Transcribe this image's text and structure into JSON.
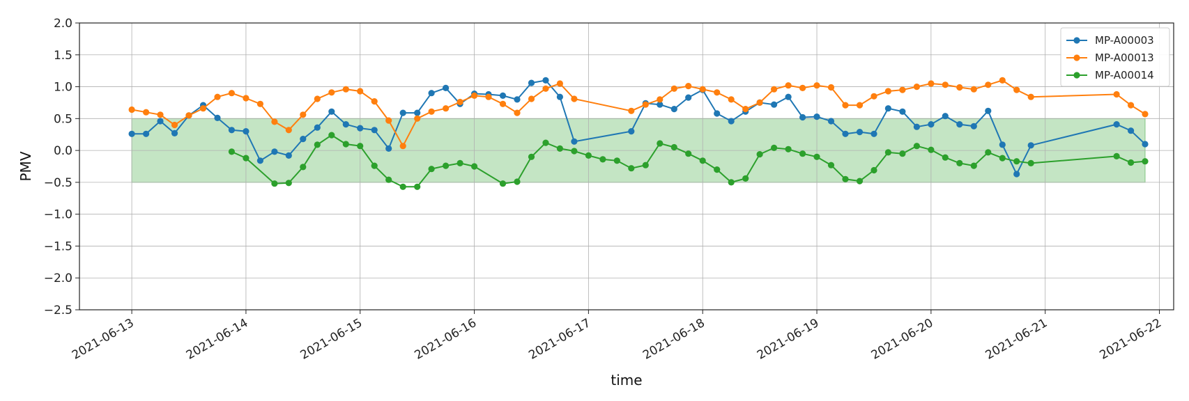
{
  "chart_data": {
    "type": "line",
    "xlabel": "time",
    "ylabel": "PMV",
    "ylim": [
      -2.5,
      2.0
    ],
    "xlim": [
      "2021-06-12T13:00",
      "2021-06-22T03:00"
    ],
    "y_ticks": [
      "2.0",
      "1.5",
      "1.0",
      "0.5",
      "0.0",
      "−0.5",
      "−1.0",
      "−1.5",
      "−2.0",
      "−2.5"
    ],
    "x_ticks": [
      "2021-06-13",
      "2021-06-14",
      "2021-06-15",
      "2021-06-16",
      "2021-06-17",
      "2021-06-18",
      "2021-06-19",
      "2021-06-20",
      "2021-06-21",
      "2021-06-22"
    ],
    "grid": true,
    "legend_position": "top-right",
    "comfort_band": {
      "y_low": -0.5,
      "y_high": 0.5,
      "x_start": "2021-06-13T00:00",
      "x_end": "2021-06-21T21:00",
      "color": "#2ca02c"
    },
    "series": [
      {
        "name": "MP-A00003",
        "color": "#1f77b4",
        "x": [
          "2021-06-13T00:00",
          "2021-06-13T03:00",
          "2021-06-13T06:00",
          "2021-06-13T09:00",
          "2021-06-13T12:00",
          "2021-06-13T15:00",
          "2021-06-13T18:00",
          "2021-06-13T21:00",
          "2021-06-14T00:00",
          "2021-06-14T03:00",
          "2021-06-14T06:00",
          "2021-06-14T09:00",
          "2021-06-14T12:00",
          "2021-06-14T15:00",
          "2021-06-14T18:00",
          "2021-06-14T21:00",
          "2021-06-15T00:00",
          "2021-06-15T03:00",
          "2021-06-15T06:00",
          "2021-06-15T09:00",
          "2021-06-15T12:00",
          "2021-06-15T15:00",
          "2021-06-15T18:00",
          "2021-06-15T21:00",
          "2021-06-16T00:00",
          "2021-06-16T03:00",
          "2021-06-16T06:00",
          "2021-06-16T09:00",
          "2021-06-16T12:00",
          "2021-06-16T15:00",
          "2021-06-16T18:00",
          "2021-06-16T21:00",
          "2021-06-17T09:00",
          "2021-06-17T12:00",
          "2021-06-17T15:00",
          "2021-06-17T18:00",
          "2021-06-17T21:00",
          "2021-06-18T00:00",
          "2021-06-18T03:00",
          "2021-06-18T06:00",
          "2021-06-18T09:00",
          "2021-06-18T12:00",
          "2021-06-18T15:00",
          "2021-06-18T18:00",
          "2021-06-18T21:00",
          "2021-06-19T00:00",
          "2021-06-19T03:00",
          "2021-06-19T06:00",
          "2021-06-19T09:00",
          "2021-06-19T12:00",
          "2021-06-19T15:00",
          "2021-06-19T18:00",
          "2021-06-19T21:00",
          "2021-06-20T00:00",
          "2021-06-20T03:00",
          "2021-06-20T06:00",
          "2021-06-20T09:00",
          "2021-06-20T12:00",
          "2021-06-20T15:00",
          "2021-06-20T18:00",
          "2021-06-20T21:00",
          "2021-06-21T15:00",
          "2021-06-21T18:00",
          "2021-06-21T21:00"
        ],
        "y": [
          0.26,
          0.26,
          0.46,
          0.27,
          0.55,
          0.71,
          0.51,
          0.32,
          0.3,
          -0.16,
          -0.02,
          -0.08,
          0.18,
          0.36,
          0.61,
          0.41,
          0.35,
          0.32,
          0.03,
          0.59,
          0.59,
          0.9,
          0.98,
          0.73,
          0.89,
          0.88,
          0.86,
          0.8,
          1.06,
          1.1,
          0.84,
          0.14,
          0.3,
          0.74,
          0.72,
          0.65,
          0.83,
          0.95,
          0.58,
          0.46,
          0.61,
          0.75,
          0.72,
          0.84,
          0.52,
          0.53,
          0.46,
          0.26,
          0.29,
          0.26,
          0.66,
          0.61,
          0.37,
          0.41,
          0.54,
          0.41,
          0.38,
          0.62,
          0.09,
          -0.37,
          0.08,
          0.41,
          0.31,
          0.1
        ]
      },
      {
        "name": "MP-A00013",
        "color": "#ff7f0e",
        "x": [
          "2021-06-13T00:00",
          "2021-06-13T03:00",
          "2021-06-13T06:00",
          "2021-06-13T09:00",
          "2021-06-13T12:00",
          "2021-06-13T15:00",
          "2021-06-13T18:00",
          "2021-06-13T21:00",
          "2021-06-14T00:00",
          "2021-06-14T03:00",
          "2021-06-14T06:00",
          "2021-06-14T09:00",
          "2021-06-14T12:00",
          "2021-06-14T15:00",
          "2021-06-14T18:00",
          "2021-06-14T21:00",
          "2021-06-15T00:00",
          "2021-06-15T03:00",
          "2021-06-15T06:00",
          "2021-06-15T09:00",
          "2021-06-15T12:00",
          "2021-06-15T15:00",
          "2021-06-15T18:00",
          "2021-06-15T21:00",
          "2021-06-16T00:00",
          "2021-06-16T03:00",
          "2021-06-16T06:00",
          "2021-06-16T09:00",
          "2021-06-16T12:00",
          "2021-06-16T15:00",
          "2021-06-16T18:00",
          "2021-06-16T21:00",
          "2021-06-17T09:00",
          "2021-06-17T12:00",
          "2021-06-17T15:00",
          "2021-06-17T18:00",
          "2021-06-17T21:00",
          "2021-06-18T00:00",
          "2021-06-18T03:00",
          "2021-06-18T06:00",
          "2021-06-18T09:00",
          "2021-06-18T12:00",
          "2021-06-18T15:00",
          "2021-06-18T18:00",
          "2021-06-18T21:00",
          "2021-06-19T00:00",
          "2021-06-19T03:00",
          "2021-06-19T06:00",
          "2021-06-19T09:00",
          "2021-06-19T12:00",
          "2021-06-19T15:00",
          "2021-06-19T18:00",
          "2021-06-19T21:00",
          "2021-06-20T00:00",
          "2021-06-20T03:00",
          "2021-06-20T06:00",
          "2021-06-20T09:00",
          "2021-06-20T12:00",
          "2021-06-20T15:00",
          "2021-06-20T18:00",
          "2021-06-20T21:00",
          "2021-06-21T15:00",
          "2021-06-21T18:00",
          "2021-06-21T21:00"
        ],
        "y": [
          0.64,
          0.6,
          0.56,
          0.4,
          0.55,
          0.66,
          0.84,
          0.9,
          0.82,
          0.73,
          0.45,
          0.32,
          0.56,
          0.81,
          0.91,
          0.96,
          0.93,
          0.77,
          0.47,
          0.07,
          0.5,
          0.61,
          0.66,
          0.76,
          0.86,
          0.84,
          0.73,
          0.59,
          0.81,
          0.97,
          1.05,
          0.81,
          0.62,
          0.72,
          0.8,
          0.97,
          1.01,
          0.96,
          0.91,
          0.8,
          0.65,
          0.75,
          0.96,
          1.02,
          0.98,
          1.02,
          0.99,
          0.71,
          0.71,
          0.85,
          0.93,
          0.95,
          1.0,
          1.05,
          1.03,
          0.99,
          0.96,
          1.03,
          1.1,
          0.95,
          0.84,
          0.88,
          0.71,
          0.57
        ]
      },
      {
        "name": "MP-A00014",
        "color": "#2ca02c",
        "x": [
          "2021-06-13T21:00",
          "2021-06-14T00:00",
          "2021-06-14T06:00",
          "2021-06-14T09:00",
          "2021-06-14T12:00",
          "2021-06-14T15:00",
          "2021-06-14T18:00",
          "2021-06-14T21:00",
          "2021-06-15T00:00",
          "2021-06-15T03:00",
          "2021-06-15T06:00",
          "2021-06-15T09:00",
          "2021-06-15T12:00",
          "2021-06-15T15:00",
          "2021-06-15T18:00",
          "2021-06-15T21:00",
          "2021-06-16T00:00",
          "2021-06-16T06:00",
          "2021-06-16T09:00",
          "2021-06-16T12:00",
          "2021-06-16T15:00",
          "2021-06-16T18:00",
          "2021-06-16T21:00",
          "2021-06-17T00:00",
          "2021-06-17T03:00",
          "2021-06-17T06:00",
          "2021-06-17T09:00",
          "2021-06-17T12:00",
          "2021-06-17T15:00",
          "2021-06-17T18:00",
          "2021-06-17T21:00",
          "2021-06-18T00:00",
          "2021-06-18T03:00",
          "2021-06-18T06:00",
          "2021-06-18T09:00",
          "2021-06-18T12:00",
          "2021-06-18T15:00",
          "2021-06-18T18:00",
          "2021-06-18T21:00",
          "2021-06-19T00:00",
          "2021-06-19T03:00",
          "2021-06-19T06:00",
          "2021-06-19T09:00",
          "2021-06-19T12:00",
          "2021-06-19T15:00",
          "2021-06-19T18:00",
          "2021-06-19T21:00",
          "2021-06-20T00:00",
          "2021-06-20T03:00",
          "2021-06-20T06:00",
          "2021-06-20T09:00",
          "2021-06-20T12:00",
          "2021-06-20T15:00",
          "2021-06-20T18:00",
          "2021-06-20T21:00",
          "2021-06-21T15:00",
          "2021-06-21T18:00",
          "2021-06-21T21:00"
        ],
        "y": [
          -0.02,
          -0.12,
          -0.52,
          -0.51,
          -0.26,
          0.09,
          0.24,
          0.1,
          0.07,
          -0.24,
          -0.46,
          -0.57,
          -0.57,
          -0.29,
          -0.24,
          -0.2,
          -0.25,
          -0.52,
          -0.49,
          -0.1,
          0.12,
          0.03,
          -0.01,
          -0.08,
          -0.14,
          -0.16,
          -0.28,
          -0.23,
          0.11,
          0.05,
          -0.05,
          -0.16,
          -0.3,
          -0.5,
          -0.44,
          -0.06,
          0.04,
          0.02,
          -0.05,
          -0.1,
          -0.23,
          -0.45,
          -0.48,
          -0.31,
          -0.03,
          -0.05,
          0.07,
          0.01,
          -0.11,
          -0.2,
          -0.24,
          -0.03,
          -0.12,
          -0.17,
          -0.2,
          -0.09,
          -0.19,
          -0.17
        ]
      }
    ]
  }
}
